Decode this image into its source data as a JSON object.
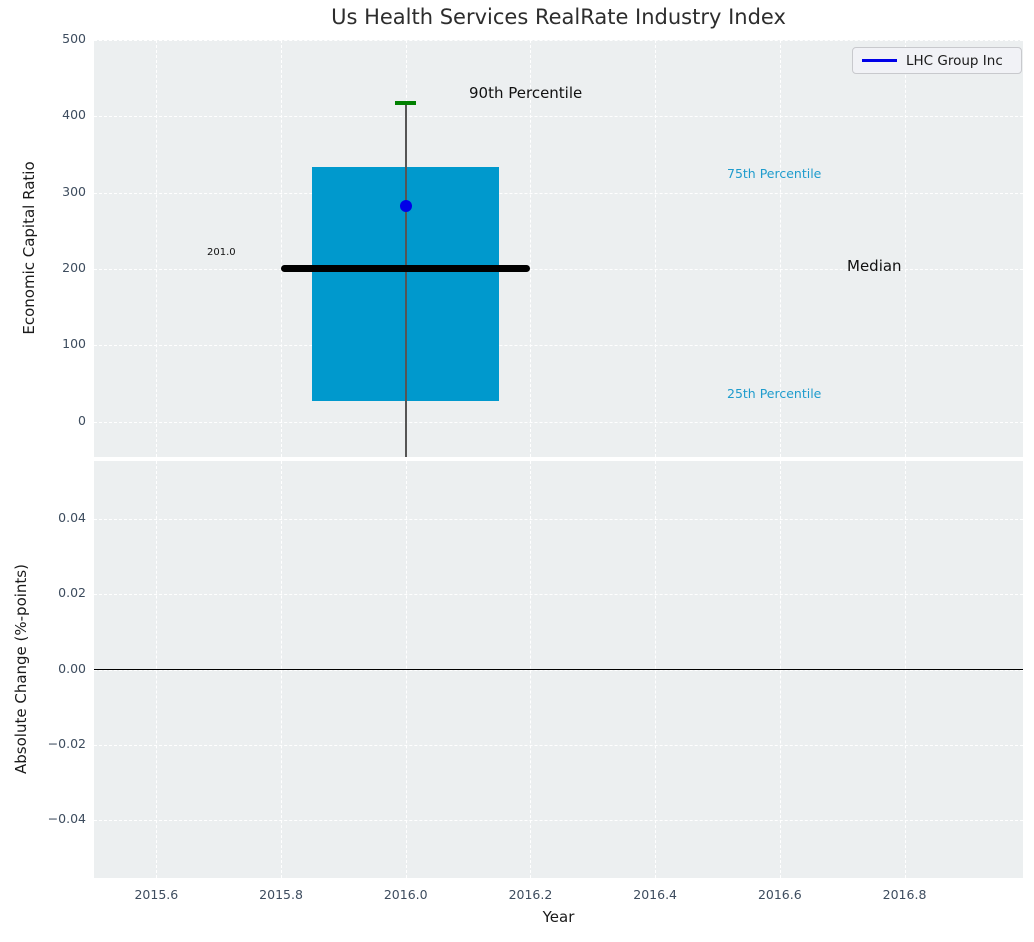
{
  "title": "Us Health Services RealRate Industry Index",
  "legend": {
    "label": "LHC Group Inc"
  },
  "palette": {
    "plot_bg": "#eceff0",
    "grid": "#ffffff",
    "box": "#0099cd",
    "company_point": "#0000e8",
    "cap_90": "#008000",
    "median_line": "#000000",
    "whisker": "#555555",
    "zero_line": "#000000",
    "tick_label": "#3d4c5e",
    "percentile_label": "#1f9ccd",
    "legend_line": "#0000e8"
  },
  "chart_data": [
    {
      "type": "box",
      "title": "Us Health Services RealRate Industry Index",
      "ylabel": "Economic Capital Ratio",
      "ylim": [
        -46,
        500
      ],
      "xlim": [
        2015.5,
        2016.99
      ],
      "grid": "dashed-white",
      "legend_position": "upper right",
      "legend_entries": [
        "LHC Group Inc"
      ],
      "yticks": [
        {
          "v": 500,
          "label": "500"
        },
        {
          "v": 400,
          "label": "400"
        },
        {
          "v": 300,
          "label": "300"
        },
        {
          "v": 200,
          "label": "200"
        },
        {
          "v": 100,
          "label": "100"
        },
        {
          "v": 0,
          "label": "0"
        }
      ],
      "box": {
        "x": 2016.0,
        "p90": 418,
        "p75": 334,
        "median": 201.0,
        "p25": 27,
        "half_width": 0.15,
        "median_half_width": 0.2,
        "cap_half_width": 0.0168,
        "whisker_extends_below_axis": true
      },
      "company_point": {
        "name": "LHC Group Inc",
        "x": 2016.0,
        "y": 283
      },
      "annotations": {
        "median_value": "201.0",
        "p90": "90th Percentile",
        "p75": "75th Percentile",
        "median": "Median",
        "p25": "25th Percentile"
      }
    },
    {
      "type": "line",
      "ylabel": "Absolute Change (%-points)",
      "xlabel": "Year",
      "ylim": [
        -0.0553,
        0.0553
      ],
      "xlim": [
        2015.5,
        2016.99
      ],
      "grid": "dashed-white",
      "zero_line_y": 0.0,
      "yticks": [
        {
          "v": 0.04,
          "label": "0.04"
        },
        {
          "v": 0.02,
          "label": "0.02"
        },
        {
          "v": 0.0,
          "label": "0.00"
        },
        {
          "v": -0.02,
          "label": "−0.02"
        },
        {
          "v": -0.04,
          "label": "−0.04"
        }
      ],
      "xticks": [
        {
          "v": 2015.6,
          "label": "2015.6"
        },
        {
          "v": 2015.8,
          "label": "2015.8"
        },
        {
          "v": 2016.0,
          "label": "2016.0"
        },
        {
          "v": 2016.2,
          "label": "2016.2"
        },
        {
          "v": 2016.4,
          "label": "2016.4"
        },
        {
          "v": 2016.6,
          "label": "2016.6"
        },
        {
          "v": 2016.8,
          "label": "2016.8"
        }
      ]
    }
  ]
}
